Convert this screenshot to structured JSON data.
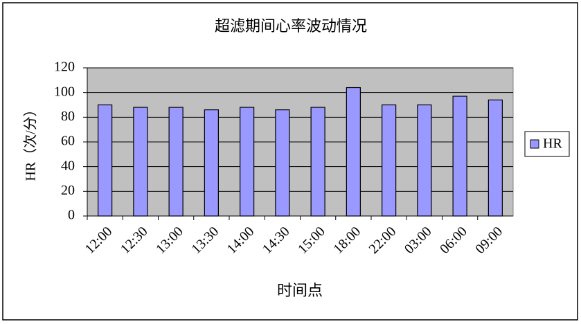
{
  "chart_data": {
    "type": "bar",
    "title": "超滤期间心率波动情况",
    "x_label": "时间点",
    "y_label": "HR（次/分）",
    "categories": [
      "12:00",
      "12:30",
      "13:00",
      "13:30",
      "14:00",
      "14:30",
      "15:00",
      "18:00",
      "22:00",
      "03:00",
      "06:00",
      "09:00"
    ],
    "series": [
      {
        "name": "HR",
        "color": "#9999ff",
        "values": [
          90,
          88,
          88,
          86,
          88,
          86,
          88,
          104,
          90,
          90,
          97,
          94
        ]
      }
    ],
    "ylim": [
      0,
      120
    ],
    "yticks": [
      0,
      20,
      40,
      60,
      80,
      100,
      120
    ],
    "grid": true,
    "legend": "right"
  }
}
